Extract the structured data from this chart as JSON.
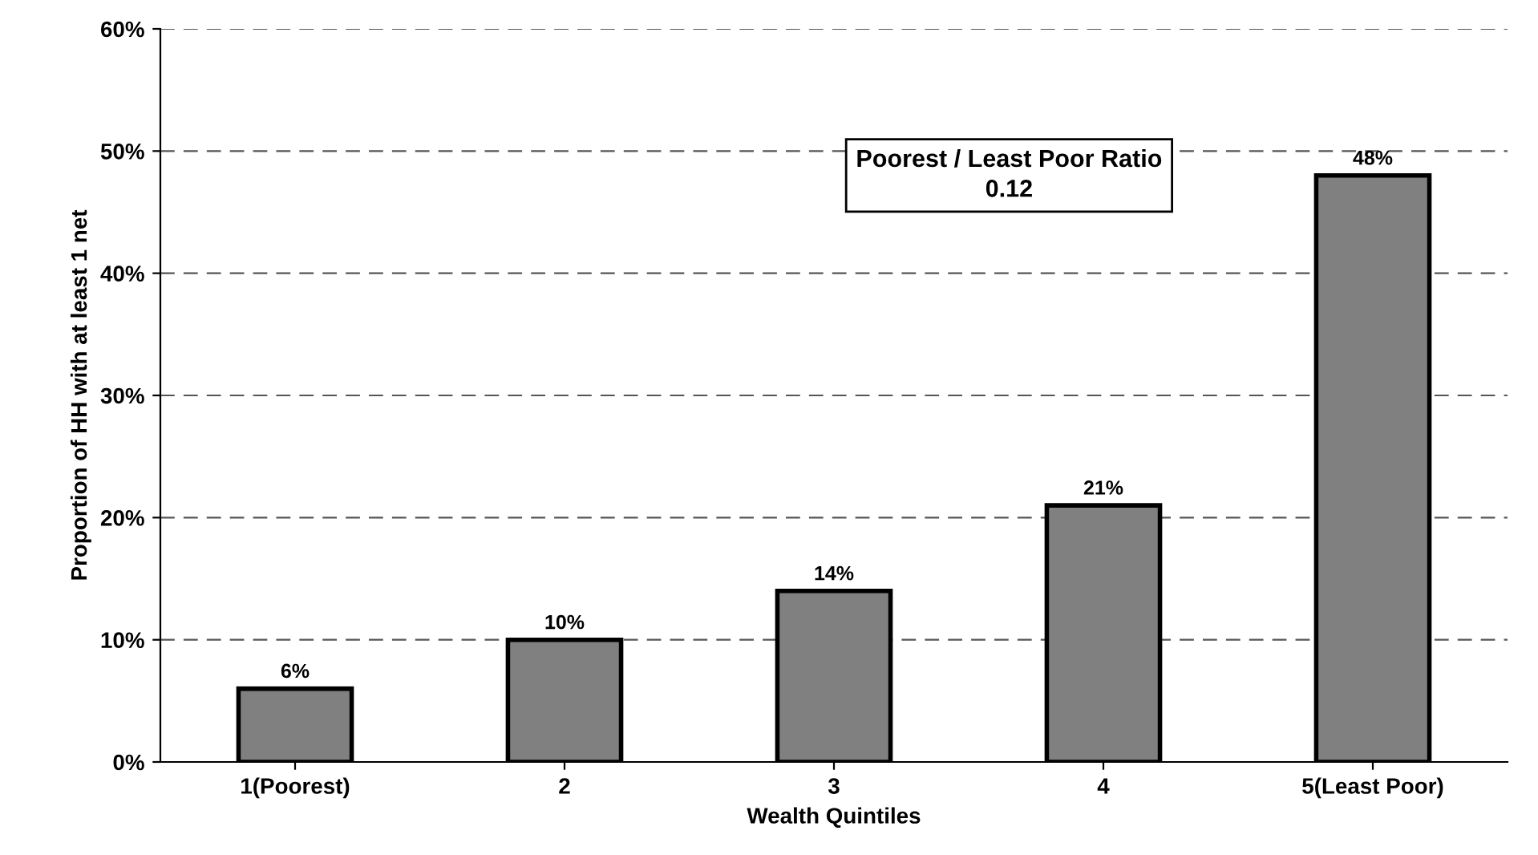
{
  "chart_data": {
    "type": "bar",
    "xlabel": "Wealth Quintiles",
    "ylabel": "Proportion of HH with at least 1 net",
    "categories": [
      "1(Poorest)",
      "2",
      "3",
      "4",
      "5(Least Poor)"
    ],
    "values": [
      6,
      10,
      14,
      21,
      48
    ],
    "value_labels": [
      "6%",
      "10%",
      "14%",
      "21%",
      "48%"
    ],
    "color": "#808080",
    "ylim": [
      0,
      60
    ],
    "yticks": [
      {
        "value": 0,
        "label": "0%"
      },
      {
        "value": 10,
        "label": "10%"
      },
      {
        "value": 20,
        "label": "20%"
      },
      {
        "value": 30,
        "label": "30%"
      },
      {
        "value": 40,
        "label": "40%"
      },
      {
        "value": 50,
        "label": "50%"
      },
      {
        "value": 60,
        "label": "60%"
      }
    ],
    "grid": "y",
    "annotations": [
      "Poorest / Least Poor Ratio\n0.12"
    ]
  }
}
